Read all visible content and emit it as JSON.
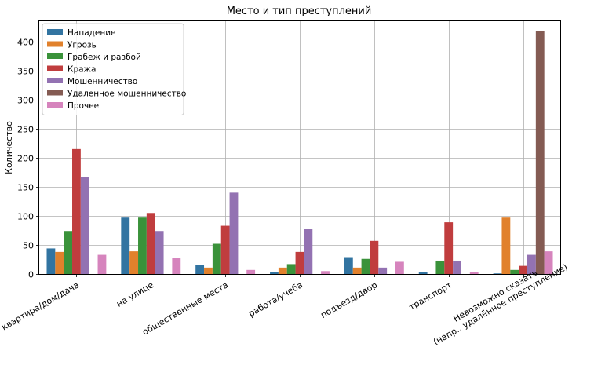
{
  "chart_data": {
    "type": "bar",
    "title": "Место и тип преступлений",
    "xlabel": "",
    "ylabel": "Количество",
    "ylim": [
      0,
      435
    ],
    "yticks": [
      0,
      50,
      100,
      150,
      200,
      250,
      300,
      350,
      400
    ],
    "grid": true,
    "legend_position": "top-left",
    "categories": [
      "квартира/дом/дача",
      "на улице",
      "общественные места",
      "работа/учеба",
      "подъезд/двор",
      "транспорт",
      "Невозможно сказать\n(напр., удалённое преступление)"
    ],
    "series": [
      {
        "name": "Нападение",
        "color": "#3274a1",
        "values": [
          44,
          97,
          15,
          4,
          29,
          4,
          1
        ]
      },
      {
        "name": "Угрозы",
        "color": "#e1812c",
        "values": [
          38,
          39,
          11,
          11,
          11,
          0,
          97
        ]
      },
      {
        "name": "Грабеж и разбой",
        "color": "#3a923a",
        "values": [
          74,
          97,
          52,
          17,
          26,
          23,
          7
        ]
      },
      {
        "name": "Кража",
        "color": "#c03d3e",
        "values": [
          215,
          105,
          83,
          38,
          57,
          89,
          14
        ]
      },
      {
        "name": "Мошенничество",
        "color": "#9372b2",
        "values": [
          167,
          74,
          140,
          77,
          11,
          23,
          33
        ]
      },
      {
        "name": "Удаленное мошенничество",
        "color": "#845b53",
        "values": [
          0,
          0,
          0,
          0,
          0,
          0,
          418
        ]
      },
      {
        "name": "Прочее",
        "color": "#d684bd",
        "values": [
          33,
          27,
          7,
          5,
          21,
          4,
          39
        ]
      }
    ]
  }
}
